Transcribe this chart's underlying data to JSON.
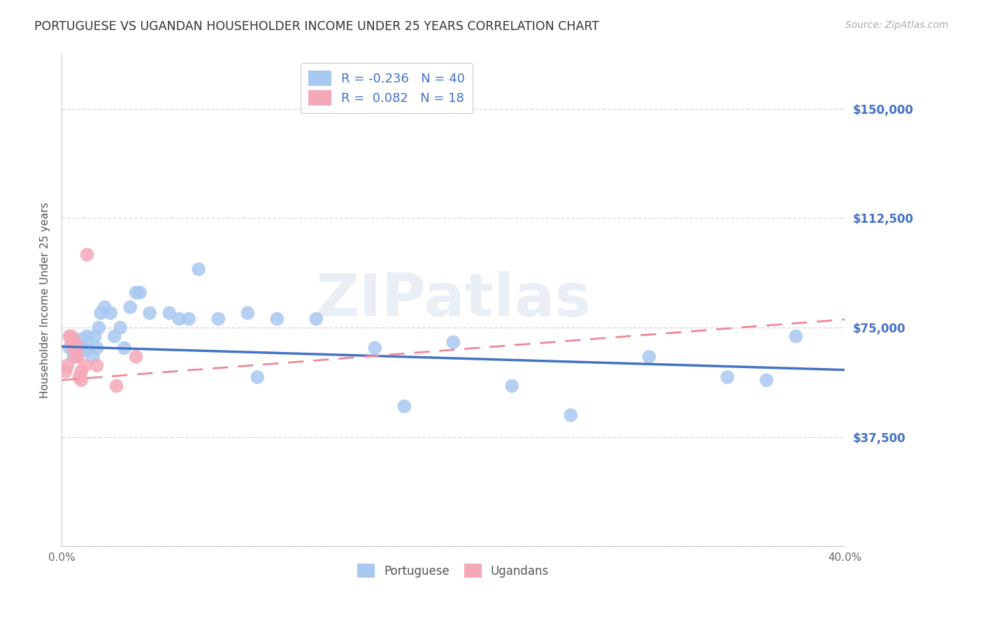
{
  "title": "PORTUGUESE VS UGANDAN HOUSEHOLDER INCOME UNDER 25 YEARS CORRELATION CHART",
  "source": "Source: ZipAtlas.com",
  "ylabel": "Householder Income Under 25 years",
  "xmin": 0.0,
  "xmax": 0.4,
  "ymin": 0,
  "ymax": 168750,
  "yticks": [
    0,
    37500,
    75000,
    112500,
    150000
  ],
  "ytick_labels": [
    "",
    "$37,500",
    "$75,000",
    "$112,500",
    "$150,000"
  ],
  "xticks": [
    0.0,
    0.05,
    0.1,
    0.15,
    0.2,
    0.25,
    0.3,
    0.35,
    0.4
  ],
  "xtick_labels": [
    "0.0%",
    "",
    "",
    "",
    "",
    "",
    "",
    "",
    "40.0%"
  ],
  "portuguese_color": "#a8c8f0",
  "ugandan_color": "#f5a8b8",
  "portuguese_line_color": "#4472c4",
  "ugandan_line_color": "#f08898",
  "watermark": "ZIPatlas",
  "portuguese_x": [
    0.004,
    0.006,
    0.008,
    0.01,
    0.011,
    0.012,
    0.013,
    0.014,
    0.016,
    0.017,
    0.018,
    0.019,
    0.02,
    0.022,
    0.025,
    0.027,
    0.03,
    0.032,
    0.035,
    0.038,
    0.04,
    0.045,
    0.055,
    0.06,
    0.065,
    0.07,
    0.08,
    0.095,
    0.1,
    0.11,
    0.13,
    0.16,
    0.175,
    0.2,
    0.23,
    0.26,
    0.3,
    0.34,
    0.36,
    0.375
  ],
  "portuguese_y": [
    68000,
    65000,
    69000,
    71000,
    68000,
    67000,
    72000,
    68000,
    65000,
    72000,
    68000,
    75000,
    80000,
    82000,
    80000,
    72000,
    75000,
    68000,
    82000,
    87000,
    87000,
    80000,
    80000,
    78000,
    78000,
    95000,
    78000,
    80000,
    58000,
    78000,
    78000,
    68000,
    48000,
    70000,
    55000,
    45000,
    65000,
    58000,
    57000,
    72000
  ],
  "ugandan_x": [
    0.002,
    0.003,
    0.004,
    0.005,
    0.005,
    0.006,
    0.007,
    0.007,
    0.008,
    0.008,
    0.009,
    0.01,
    0.01,
    0.012,
    0.013,
    0.018,
    0.028,
    0.038
  ],
  "ugandan_y": [
    60000,
    62000,
    72000,
    72000,
    70000,
    68000,
    65000,
    70000,
    65000,
    68000,
    58000,
    60000,
    57000,
    62000,
    100000,
    62000,
    55000,
    65000
  ],
  "background_color": "#ffffff",
  "grid_color": "#d8d8d8",
  "title_color": "#333333",
  "axis_label_color": "#555555",
  "right_label_color": "#4472c4",
  "port_line_intercept": 68500,
  "port_line_slope": -20000,
  "ug_line_intercept": 57000,
  "ug_line_slope": 52000
}
